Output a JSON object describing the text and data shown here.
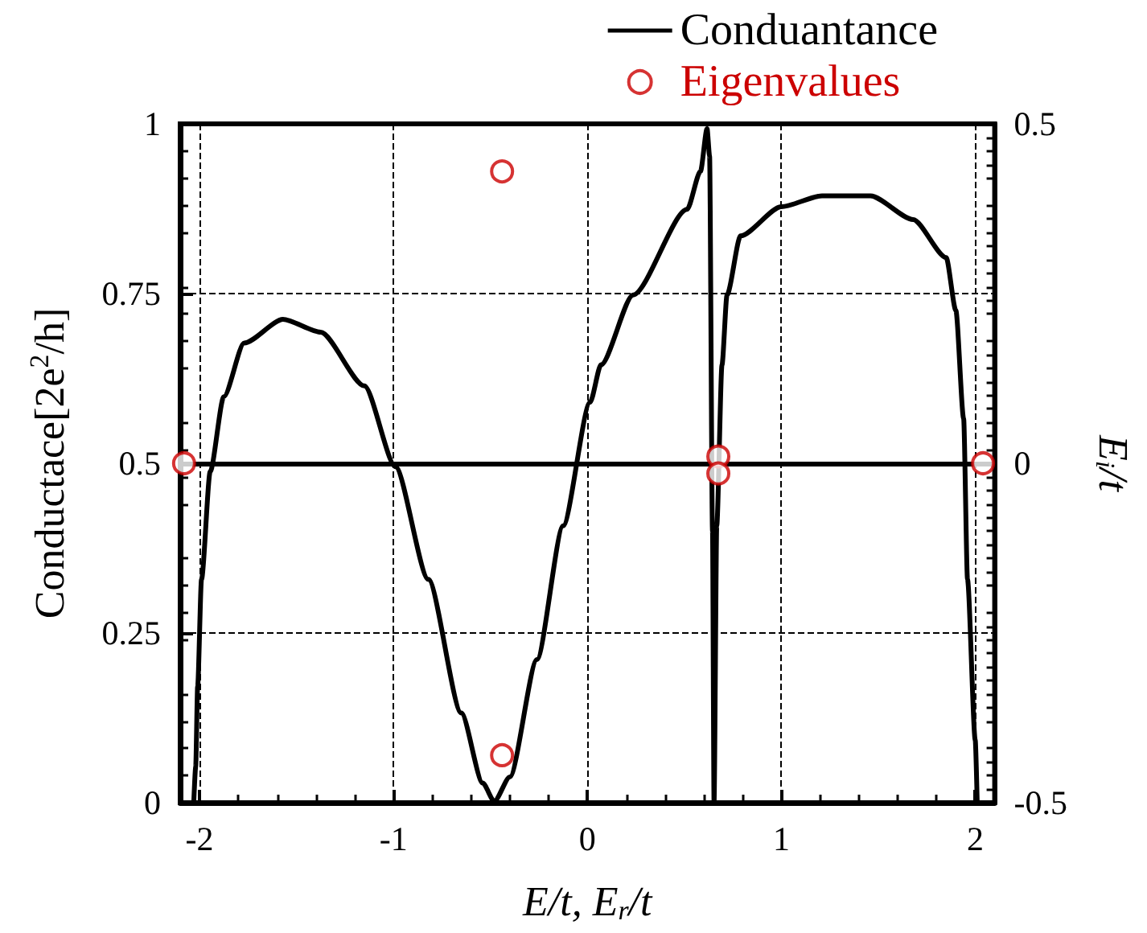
{
  "chart_data": {
    "type": "line",
    "xlabel": "E/t, E$_{r}$/t",
    "ylabel": "Conductace[2e$^{2}$/h]",
    "y2label": "E$_{i}$/t",
    "xlim": [
      -2.1,
      2.1
    ],
    "xticks": [
      -2,
      -1,
      0,
      1,
      2
    ],
    "ylim": [
      0,
      1
    ],
    "yticks": [
      0,
      0.25,
      0.5,
      0.75,
      1
    ],
    "y2lim": [
      -0.5,
      0.5
    ],
    "y2ticks": [
      -0.5,
      0,
      0.5
    ],
    "grid": true,
    "legend": "top right",
    "line_style": "solid",
    "ref_lines": [
      {
        "axis": "y2",
        "value": 0,
        "color": "#000000",
        "line_style": "solid"
      }
    ],
    "series": [
      {
        "name": "Conduantance",
        "color": "#000000",
        "marker": "none",
        "x": [
          -2.03,
          -2.02,
          -2.01,
          -1.99,
          -1.945,
          -1.875,
          -1.77,
          -1.57,
          -1.375,
          -1.15,
          -0.99,
          -0.82,
          -0.65,
          -0.54,
          -0.48,
          -0.4,
          -0.26,
          -0.125,
          0.014,
          0.07,
          0.236,
          0.514,
          0.583,
          0.617,
          0.63,
          0.645,
          0.653,
          0.667,
          0.694,
          0.72,
          0.79,
          1.0,
          1.21,
          1.46,
          1.68,
          1.85,
          1.9,
          1.94,
          1.96,
          2.0,
          2.01
        ],
        "values": [
          0,
          0.053,
          0.171,
          0.329,
          0.488,
          0.598,
          0.677,
          0.712,
          0.693,
          0.614,
          0.495,
          0.329,
          0.132,
          0.029,
          0.002,
          0.038,
          0.211,
          0.408,
          0.59,
          0.645,
          0.748,
          0.874,
          0.93,
          0.993,
          0.953,
          0.4,
          0,
          0.408,
          0.645,
          0.748,
          0.835,
          0.878,
          0.894,
          0.894,
          0.859,
          0.803,
          0.725,
          0.566,
          0.329,
          0.092,
          0
        ]
      },
      {
        "name": "Eigenvalues",
        "type": "scatter",
        "axis": "y2",
        "color": "#cc0000",
        "marker": "circle",
        "x": [
          -2.08,
          -0.44,
          -0.44,
          0.675,
          0.675,
          2.04
        ],
        "values": [
          0,
          0.43,
          -0.43,
          0.01,
          -0.015,
          0
        ]
      }
    ]
  }
}
